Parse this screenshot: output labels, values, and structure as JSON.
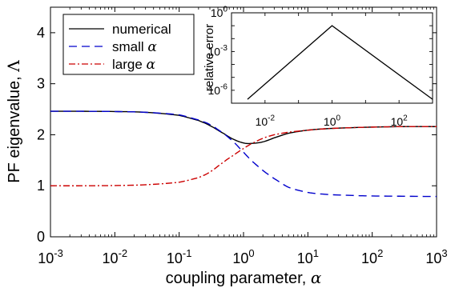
{
  "chart_data": [
    {
      "type": "line",
      "title": "",
      "xlabel": "coupling parameter, α",
      "ylabel": "PF eigenvalue, Λ",
      "xscale": "log",
      "xlim": [
        0.001,
        1000
      ],
      "ylim": [
        0,
        4.5
      ],
      "grid": false,
      "legend_position": "top-left",
      "x_ticks": [
        {
          "base": "10",
          "exp": "-3"
        },
        {
          "base": "10",
          "exp": "-2"
        },
        {
          "base": "10",
          "exp": "-1"
        },
        {
          "base": "10",
          "exp": "0"
        },
        {
          "base": "10",
          "exp": "1"
        },
        {
          "base": "10",
          "exp": "2"
        },
        {
          "base": "10",
          "exp": "3"
        }
      ],
      "y_ticks": [
        "0",
        "1",
        "2",
        "3",
        "4"
      ],
      "x": [
        0.001,
        0.003,
        0.01,
        0.03,
        0.1,
        0.2,
        0.3,
        0.5,
        0.7,
        1,
        1.3,
        2,
        3,
        5,
        10,
        20,
        50,
        100,
        300,
        1000
      ],
      "series": [
        {
          "name": "numerical",
          "color": "#000000",
          "dash": "solid",
          "values": [
            2.46,
            2.46,
            2.455,
            2.44,
            2.38,
            2.28,
            2.18,
            2.02,
            1.91,
            1.84,
            1.83,
            1.86,
            1.94,
            2.03,
            2.09,
            2.12,
            2.14,
            2.15,
            2.16,
            2.16
          ]
        },
        {
          "name": "small α",
          "color": "#0000cc",
          "dash": "dashed",
          "values": [
            2.46,
            2.46,
            2.455,
            2.44,
            2.39,
            2.29,
            2.2,
            2.02,
            1.86,
            1.66,
            1.5,
            1.3,
            1.14,
            0.97,
            0.87,
            0.83,
            0.81,
            0.8,
            0.795,
            0.79
          ]
        },
        {
          "name": "large α",
          "color": "#cc0000",
          "dash": "dashdot",
          "values": [
            1.0,
            1.0,
            1.005,
            1.02,
            1.07,
            1.16,
            1.27,
            1.47,
            1.6,
            1.73,
            1.82,
            1.93,
            2.0,
            2.05,
            2.09,
            2.12,
            2.14,
            2.15,
            2.16,
            2.16
          ]
        }
      ]
    },
    {
      "type": "line",
      "title": "",
      "xlabel": "",
      "ylabel": "relative error",
      "xscale": "log",
      "yscale": "log",
      "xlim": [
        0.001,
        1000
      ],
      "ylim": [
        1e-07,
        1
      ],
      "x_ticks": [
        {
          "base": "10",
          "exp": "-2"
        },
        {
          "base": "10",
          "exp": "0"
        },
        {
          "base": "10",
          "exp": "2"
        }
      ],
      "y_ticks": [
        {
          "base": "10",
          "exp": "-6"
        },
        {
          "base": "10",
          "exp": "-3"
        },
        {
          "base": "10",
          "exp": "0"
        }
      ],
      "x": [
        0.003,
        1,
        1000
      ],
      "series": [
        {
          "color": "#000000",
          "values": [
            2e-07,
            0.1,
            2e-07
          ]
        }
      ]
    }
  ]
}
